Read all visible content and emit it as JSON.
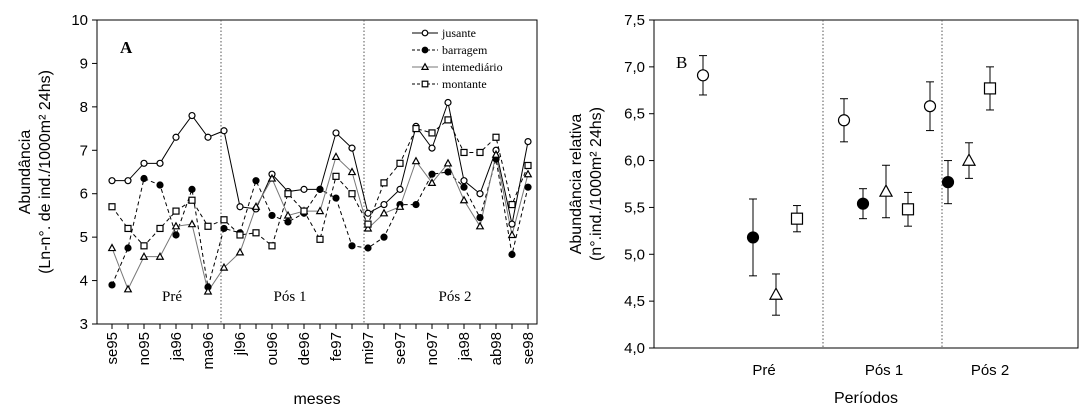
{
  "chart_data": [
    {
      "type": "line",
      "panel_label": "A",
      "xlabel": "meses",
      "ylabel": "Abundância",
      "ylabel_line2": "(Ln-n°. de ind./1000m² 24hs)",
      "ylim": [
        3,
        10
      ],
      "yticks": [
        "3",
        "4",
        "5",
        "6",
        "7",
        "8",
        "9",
        "10"
      ],
      "xtick_labels": [
        "se95",
        "no95",
        "ja96",
        "ma96",
        "jl96",
        "ou96",
        "de96",
        "fe97",
        "mi97",
        "se97",
        "no97",
        "ja98",
        "ab98",
        "se98"
      ],
      "period_labels": [
        "Pré",
        "Pós 1",
        "Pós 2"
      ],
      "legend_position": "top-right",
      "series": [
        {
          "name": "jusante",
          "marker": "open-circle",
          "line": "solid",
          "values": [
            6.3,
            6.3,
            6.7,
            6.7,
            7.3,
            7.8,
            7.3,
            7.45,
            5.7,
            5.65,
            6.45,
            6.05,
            6.1,
            6.1,
            7.4,
            7.05,
            5.55,
            5.75,
            6.1,
            7.55,
            7.05,
            8.1,
            6.3,
            6.0,
            7.0,
            5.3,
            7.2
          ]
        },
        {
          "name": "barragem",
          "marker": "filled-circle",
          "line": "dashed",
          "values": [
            3.9,
            4.75,
            6.35,
            6.2,
            5.05,
            6.1,
            3.85,
            5.2,
            5.1,
            6.3,
            5.5,
            5.35,
            5.55,
            6.1,
            5.9,
            4.8,
            4.75,
            5.0,
            5.75,
            5.75,
            6.45,
            6.5,
            6.15,
            5.45,
            6.8,
            4.6,
            6.15
          ]
        },
        {
          "name": "intemediário",
          "marker": "open-triangle",
          "line": "solid-gray",
          "values": [
            4.75,
            3.8,
            4.55,
            4.55,
            5.25,
            5.3,
            3.75,
            4.3,
            4.65,
            5.7,
            6.35,
            5.5,
            5.6,
            5.6,
            6.85,
            6.5,
            5.2,
            5.55,
            5.7,
            6.75,
            6.25,
            6.7,
            5.85,
            5.25,
            6.9,
            5.05,
            6.45
          ]
        },
        {
          "name": "montante",
          "marker": "open-square",
          "line": "dashed",
          "values": [
            5.7,
            5.2,
            4.8,
            5.2,
            5.6,
            5.85,
            5.25,
            5.4,
            5.05,
            5.1,
            4.8,
            6.0,
            5.6,
            4.95,
            6.4,
            6.0,
            5.3,
            6.25,
            6.7,
            7.5,
            7.4,
            7.7,
            6.95,
            6.95,
            7.3,
            5.75,
            6.65
          ]
        }
      ]
    },
    {
      "type": "scatter",
      "panel_label": "B",
      "xlabel": "Períodos",
      "ylabel": "Abundância relativa",
      "ylabel_line2": "(n°.ind./1000m² 24hs)",
      "ylim": [
        4.0,
        7.5
      ],
      "yticks": [
        "4,0",
        "4,5",
        "5,0",
        "5,5",
        "6,0",
        "6,5",
        "7,0",
        "7,5"
      ],
      "categories": [
        "Pré",
        "Pós 1",
        "Pós 2"
      ],
      "series": [
        {
          "marker": "open-circle",
          "values": [
            6.91,
            6.43,
            6.58
          ],
          "error": [
            0.21,
            0.23,
            0.26
          ]
        },
        {
          "marker": "filled-circle",
          "values": [
            5.18,
            5.54,
            5.77
          ],
          "error": [
            0.41,
            0.16,
            0.23
          ]
        },
        {
          "marker": "open-triangle",
          "values": [
            4.57,
            5.67,
            6.0
          ],
          "error": [
            0.22,
            0.28,
            0.19
          ]
        },
        {
          "marker": "open-square",
          "values": [
            5.38,
            5.48,
            6.77
          ],
          "error": [
            0.14,
            0.18,
            0.23
          ]
        }
      ]
    }
  ]
}
